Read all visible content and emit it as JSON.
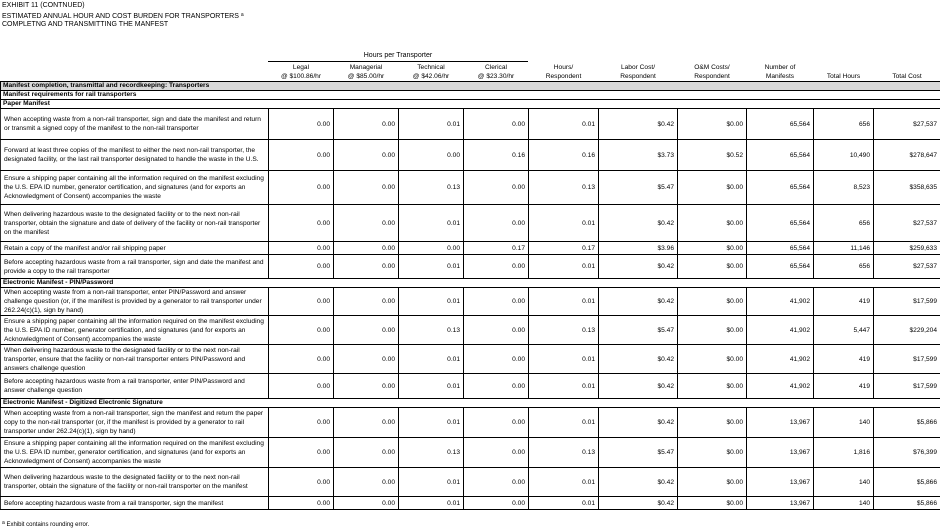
{
  "header": {
    "exhibit": "EXHIBIT 11 (CONTNUED)",
    "title_line1": "ESTIMATED ANNUAL HOUR AND COST BURDEN FOR TRANSPORTERS",
    "title_marker": "a",
    "title_line2": "COMPLETNG AND TRANSMITTING THE MANFEST"
  },
  "table": {
    "group_header": "Hours per Transporter",
    "columns": [
      {
        "line1": "Legal",
        "line2": "@ $100.86/hr"
      },
      {
        "line1": "Managerial",
        "line2": "@ $85.00/hr"
      },
      {
        "line1": "Technical",
        "line2": "@ $42.06/hr"
      },
      {
        "line1": "Clerical",
        "line2": "@ $23.30/hr"
      },
      {
        "line1": "Hours/",
        "line2": "Respondent"
      },
      {
        "line1": "Labor Cost/",
        "line2": "Respondent"
      },
      {
        "line1": "O&M Costs/",
        "line2": "Respondent"
      },
      {
        "line1": "Number of",
        "line2": "Manifests"
      },
      {
        "line1": "",
        "line2": "Total Hours"
      },
      {
        "line1": "",
        "line2": "Total Cost"
      }
    ],
    "rows": [
      {
        "type": "section",
        "level": 0,
        "label": "Manifest completion, transmittal and recordkeeping:  Transporters"
      },
      {
        "type": "section",
        "level": 1,
        "label": "Manifest requirements for rail transporters"
      },
      {
        "type": "section",
        "level": 2,
        "label": "Paper Manifest"
      },
      {
        "type": "data",
        "h": 31,
        "desc": "When accepting waste from a non-rail transporter, sign and date the manifest and return or transmit a signed copy of the manifest to the non-rail transporter",
        "values": [
          "0.00",
          "0.00",
          "0.01",
          "0.00",
          "0.01",
          "$0.42",
          "$0.00",
          "65,564",
          "656",
          "$27,537"
        ]
      },
      {
        "type": "data",
        "h": 31,
        "desc": "Forward at least three copies of the manifest to either the next non-rail transporter, the designated facility, or the last rail transporter designated to handle the waste in the U.S.",
        "values": [
          "0.00",
          "0.00",
          "0.00",
          "0.16",
          "0.16",
          "$3.73",
          "$0.52",
          "65,564",
          "10,490",
          "$278,647"
        ]
      },
      {
        "type": "data",
        "h": 34,
        "desc": "Ensure a shipping paper containing all the information required on the manifest excluding the U.S. EPA ID number, generator certification, and signatures (and for exports an Acknowledgment of Consent) accompanies the waste",
        "values": [
          "0.00",
          "0.00",
          "0.13",
          "0.00",
          "0.13",
          "$5.47",
          "$0.00",
          "65,564",
          "8,523",
          "$358,635"
        ]
      },
      {
        "type": "data",
        "h": 37,
        "desc": "When delivering hazardous waste to the designated facility or to the next non-rail transporter, obtain the signature and date of delivery of the facility or non-rail transporter on the manifest",
        "values": [
          "0.00",
          "0.00",
          "0.01",
          "0.00",
          "0.01",
          "$0.42",
          "$0.00",
          "65,564",
          "656",
          "$27,537"
        ]
      },
      {
        "type": "data",
        "h": 13,
        "desc": "Retain a copy of the manifest and/or rail shipping paper",
        "values": [
          "0.00",
          "0.00",
          "0.00",
          "0.17",
          "0.17",
          "$3.96",
          "$0.00",
          "65,564",
          "11,146",
          "$259,633"
        ]
      },
      {
        "type": "data",
        "h": 24,
        "desc": "Before accepting hazardous waste from a rail transporter, sign and date the manifest and provide a copy to the rail transporter",
        "values": [
          "0.00",
          "0.00",
          "0.01",
          "0.00",
          "0.01",
          "$0.42",
          "$0.00",
          "65,564",
          "656",
          "$27,537"
        ]
      },
      {
        "type": "section",
        "level": 2,
        "label": "Electronic Manifest - PIN/Password"
      },
      {
        "type": "data",
        "h": 28,
        "desc": "When accepting waste from a non-rail transporter, enter PIN/Password and answer challenge question (or, if the manifest is provided by a generator to rail transporter under 262.24(c)(1), sign by hand)",
        "values": [
          "0.00",
          "0.00",
          "0.01",
          "0.00",
          "0.01",
          "$0.42",
          "$0.00",
          "41,902",
          "419",
          "$17,599"
        ]
      },
      {
        "type": "data",
        "h": 29,
        "desc": "Ensure a shipping paper containing all the information required on the manifest excluding the U.S. EPA ID number, generator certification, and signatures (and for exports an Acknowledgment of Consent) accompanies the waste",
        "values": [
          "0.00",
          "0.00",
          "0.13",
          "0.00",
          "0.13",
          "$5.47",
          "$0.00",
          "41,902",
          "5,447",
          "$229,204"
        ]
      },
      {
        "type": "data",
        "h": 29,
        "desc": "When delivering hazardous waste to the designated facility or to the next non-rail transporter, ensure that the facility or non-rail transporter enters PIN/Password and answers challenge question",
        "values": [
          "0.00",
          "0.00",
          "0.01",
          "0.00",
          "0.01",
          "$0.42",
          "$0.00",
          "41,902",
          "419",
          "$17,599"
        ]
      },
      {
        "type": "data",
        "h": 25,
        "desc": "Before accepting hazardous waste from a rail transporter, enter PIN/Password and answer challenge question",
        "values": [
          "0.00",
          "0.00",
          "0.01",
          "0.00",
          "0.01",
          "$0.42",
          "$0.00",
          "41,902",
          "419",
          "$17,599"
        ]
      },
      {
        "type": "section",
        "level": 2,
        "label": "Electronic Manifest - Digitized Electronic Signature"
      },
      {
        "type": "data",
        "h": 30,
        "desc": "When accepting waste from a non-rail transporter, sign the manifest and return the paper copy to the non-rail transporter (or, if the manifest is provided by a generator to rail transporter under 262.24(c)(1), sign by hand)",
        "values": [
          "0.00",
          "0.00",
          "0.01",
          "0.00",
          "0.01",
          "$0.42",
          "$0.00",
          "13,967",
          "140",
          "$5,866"
        ]
      },
      {
        "type": "data",
        "h": 30,
        "desc": "Ensure a shipping paper containing all the information required on the manifest excluding the U.S. EPA ID number, generator certification, and signatures (and for exports an Acknowledgment of Consent) accompanies the waste",
        "values": [
          "0.00",
          "0.00",
          "0.13",
          "0.00",
          "0.13",
          "$5.47",
          "$0.00",
          "13,967",
          "1,816",
          "$76,399"
        ]
      },
      {
        "type": "data",
        "h": 29,
        "desc": "When delivering hazardous waste to the designated facility or to the next non-rail transporter, obtain the signature of the facility or non-rail transporter on the manifest",
        "values": [
          "0.00",
          "0.00",
          "0.01",
          "0.00",
          "0.01",
          "$0.42",
          "$0.00",
          "13,967",
          "140",
          "$5,866"
        ]
      },
      {
        "type": "data",
        "h": 13,
        "desc": "Before accepting hazardous waste from a rail transporter, sign the manifest",
        "values": [
          "0.00",
          "0.00",
          "0.01",
          "0.00",
          "0.01",
          "$0.42",
          "$0.00",
          "13,967",
          "140",
          "$5,866"
        ]
      }
    ]
  },
  "footnote": {
    "marker": "a",
    "text": "Exhibit contains rounding error."
  }
}
